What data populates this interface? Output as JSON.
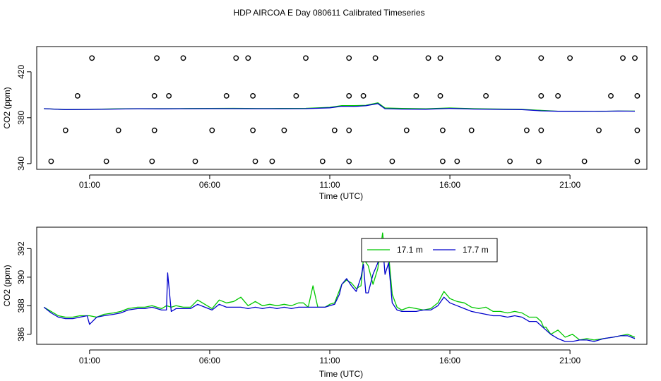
{
  "title": "HDP AIRCOA E  Day 080611  Calibrated Timeseries",
  "colors": {
    "green": "#00c800",
    "blue": "#0000cc",
    "axis": "#000000"
  },
  "chart_data": [
    {
      "type": "line",
      "panel": "top",
      "xlabel": "Time (UTC)",
      "ylabel": "CO2 (ppm)",
      "xlim": [
        -1.2,
        24.2
      ],
      "ylim": [
        335,
        442
      ],
      "x_ticks": [
        1,
        6,
        11,
        16,
        21
      ],
      "x_tick_labels": [
        "01:00",
        "06:00",
        "11:00",
        "16:00",
        "21:00"
      ],
      "y_ticks": [
        340,
        380,
        420
      ],
      "y_tick_labels": [
        "340",
        "380",
        "420"
      ],
      "series": [
        {
          "name": "17.1 m",
          "color": "green",
          "x": [
            -0.9,
            0,
            1,
            2,
            3,
            4,
            5,
            6,
            7,
            8,
            9,
            10,
            11,
            11.5,
            12,
            12.5,
            13,
            13.3,
            14,
            15,
            16,
            17,
            18,
            19,
            19.8,
            20.5,
            21,
            22,
            23,
            23.7
          ],
          "y": [
            387.9,
            387.1,
            387.3,
            387.7,
            387.9,
            387.9,
            388.0,
            388.1,
            388.2,
            388.0,
            388.1,
            388.2,
            389.0,
            390.6,
            390.5,
            390.8,
            393.0,
            388.5,
            388.1,
            387.8,
            388.5,
            387.9,
            387.6,
            387.3,
            386.4,
            385.7,
            385.6,
            385.5,
            385.8,
            385.8
          ]
        },
        {
          "name": "17.7 m",
          "color": "blue",
          "x": [
            -0.9,
            0,
            1,
            2,
            3,
            4,
            5,
            6,
            7,
            8,
            9,
            10,
            11,
            11.5,
            12,
            12.5,
            13,
            13.3,
            14,
            15,
            16,
            17,
            18,
            19,
            19.8,
            20.5,
            21,
            22,
            23,
            23.7
          ],
          "y": [
            387.9,
            387.0,
            387.2,
            387.5,
            387.8,
            387.7,
            387.8,
            387.9,
            387.9,
            387.8,
            387.8,
            387.9,
            388.6,
            390.0,
            389.8,
            390.4,
            392.3,
            387.8,
            387.5,
            387.4,
            388.1,
            387.5,
            387.3,
            387.0,
            386.0,
            385.6,
            385.6,
            385.5,
            385.8,
            385.7
          ]
        }
      ],
      "calibration_points": {
        "type": "scatter",
        "x": [
          1.1,
          3.8,
          4.9,
          7.1,
          7.6,
          10.0,
          11.8,
          12.9,
          15.1,
          15.6,
          18.0,
          19.8,
          21.0,
          23.2,
          23.7,
          0.5,
          3.7,
          4.3,
          6.7,
          7.8,
          9.6,
          11.8,
          12.4,
          14.6,
          15.6,
          17.5,
          19.8,
          20.5,
          22.7,
          23.8,
          0.0,
          2.2,
          3.7,
          6.1,
          7.8,
          9.1,
          11.2,
          11.8,
          14.2,
          15.7,
          16.9,
          19.2,
          19.8,
          22.2,
          23.8,
          -0.6,
          1.7,
          3.6,
          5.4,
          7.9,
          8.6,
          10.7,
          11.8,
          13.6,
          15.7,
          16.3,
          18.5,
          19.7,
          21.6,
          23.8
        ],
        "y": [
          432,
          432,
          432,
          432,
          432,
          432,
          432,
          432,
          432,
          432,
          432,
          432,
          432,
          432,
          432,
          399,
          399,
          399,
          399,
          399,
          399,
          399,
          399,
          399,
          399,
          399,
          399,
          399,
          399,
          399,
          369,
          369,
          369,
          369,
          369,
          369,
          369,
          369,
          369,
          369,
          369,
          369,
          369,
          369,
          369,
          342,
          342,
          342,
          342,
          342,
          342,
          342,
          342,
          342,
          342,
          342,
          342,
          342,
          342,
          342
        ]
      }
    },
    {
      "type": "line",
      "panel": "bottom",
      "xlabel": "Time (UTC)",
      "ylabel": "CO2 (ppm)",
      "xlim": [
        -1.2,
        24.2
      ],
      "ylim": [
        385.3,
        393.5
      ],
      "x_ticks": [
        1,
        6,
        11,
        16,
        21
      ],
      "x_tick_labels": [
        "01:00",
        "06:00",
        "11:00",
        "16:00",
        "21:00"
      ],
      "y_ticks": [
        386,
        388,
        390,
        392
      ],
      "y_tick_labels": [
        "386",
        "388",
        "390",
        "392"
      ],
      "legend": {
        "position": "top-center",
        "entries": [
          "17.1 m",
          "17.7 m"
        ]
      },
      "series": [
        {
          "name": "17.1 m",
          "color": "green",
          "x": [
            -0.9,
            -0.6,
            -0.3,
            0.0,
            0.3,
            0.6,
            1.0,
            1.3,
            1.6,
            2.0,
            2.3,
            2.6,
            3.0,
            3.3,
            3.6,
            4.0,
            4.2,
            4.4,
            4.6,
            4.9,
            5.2,
            5.5,
            5.8,
            6.1,
            6.4,
            6.7,
            7.0,
            7.3,
            7.6,
            7.9,
            8.2,
            8.5,
            8.8,
            9.1,
            9.4,
            9.7,
            9.9,
            10.1,
            10.3,
            10.5,
            10.8,
            11.0,
            11.2,
            11.5,
            11.7,
            11.9,
            12.1,
            12.3,
            12.4,
            12.6,
            12.8,
            13.0,
            13.2,
            13.3,
            13.45,
            13.6,
            13.8,
            14.0,
            14.3,
            14.6,
            14.9,
            15.2,
            15.5,
            15.75,
            16.0,
            16.3,
            16.6,
            16.9,
            17.2,
            17.5,
            17.8,
            18.1,
            18.4,
            18.7,
            19.0,
            19.3,
            19.6,
            19.8,
            19.9,
            20.0,
            20.2,
            20.5,
            20.8,
            21.1,
            21.4,
            21.7,
            22.0,
            22.4,
            22.8,
            23.1,
            23.4,
            23.7
          ],
          "y": [
            387.9,
            387.6,
            387.3,
            387.2,
            387.2,
            387.3,
            387.3,
            387.2,
            387.4,
            387.5,
            387.6,
            387.8,
            387.9,
            387.9,
            388.0,
            387.8,
            388.0,
            387.9,
            388.0,
            387.9,
            387.9,
            388.4,
            388.1,
            387.8,
            388.4,
            388.2,
            388.3,
            388.6,
            388.0,
            388.3,
            388.0,
            388.1,
            388.0,
            388.1,
            388.0,
            388.2,
            388.2,
            387.9,
            389.4,
            387.9,
            387.9,
            388.1,
            388.2,
            389.5,
            389.8,
            389.6,
            389.2,
            389.4,
            391.3,
            390.8,
            389.5,
            390.6,
            393.1,
            391.3,
            391.6,
            388.8,
            387.9,
            387.7,
            387.9,
            387.8,
            387.7,
            387.8,
            388.2,
            389.0,
            388.5,
            388.3,
            388.2,
            387.9,
            387.8,
            387.9,
            387.6,
            387.6,
            387.5,
            387.6,
            387.5,
            387.2,
            387.2,
            386.9,
            386.5,
            386.5,
            386.0,
            386.3,
            385.8,
            386.0,
            385.6,
            385.7,
            385.6,
            385.7,
            385.8,
            385.9,
            386.0,
            385.8
          ]
        },
        {
          "name": "17.7 m",
          "color": "blue",
          "x": [
            -0.9,
            -0.6,
            -0.3,
            0.0,
            0.3,
            0.6,
            0.9,
            1.0,
            1.3,
            1.6,
            2.0,
            2.3,
            2.6,
            3.0,
            3.3,
            3.6,
            4.0,
            4.2,
            4.25,
            4.4,
            4.6,
            4.9,
            5.2,
            5.5,
            5.8,
            6.1,
            6.4,
            6.7,
            7.0,
            7.3,
            7.6,
            7.9,
            8.2,
            8.5,
            8.8,
            9.1,
            9.4,
            9.7,
            10.0,
            10.3,
            10.5,
            10.8,
            11.0,
            11.2,
            11.4,
            11.5,
            11.7,
            11.9,
            12.1,
            12.3,
            12.4,
            12.5,
            12.6,
            12.8,
            13.0,
            13.2,
            13.3,
            13.45,
            13.6,
            13.8,
            14.0,
            14.3,
            14.6,
            14.9,
            15.2,
            15.5,
            15.75,
            16.0,
            16.3,
            16.6,
            16.9,
            17.2,
            17.5,
            17.8,
            18.1,
            18.4,
            18.7,
            19.0,
            19.3,
            19.6,
            19.8,
            20.0,
            20.2,
            20.5,
            20.8,
            21.1,
            21.4,
            21.7,
            22.0,
            22.4,
            22.8,
            23.1,
            23.4,
            23.7
          ],
          "y": [
            387.9,
            387.5,
            387.2,
            387.1,
            387.1,
            387.2,
            387.3,
            386.7,
            387.2,
            387.3,
            387.4,
            387.5,
            387.7,
            387.8,
            387.8,
            387.9,
            387.7,
            387.7,
            390.3,
            387.6,
            387.8,
            387.8,
            387.8,
            388.1,
            387.9,
            387.7,
            388.1,
            387.9,
            387.9,
            387.9,
            387.8,
            387.9,
            387.8,
            387.9,
            387.8,
            387.9,
            387.8,
            387.9,
            387.9,
            387.9,
            387.9,
            387.9,
            388.0,
            388.1,
            388.8,
            389.5,
            389.9,
            389.4,
            389.0,
            390.0,
            390.9,
            388.9,
            388.9,
            390.2,
            391.0,
            392.3,
            390.2,
            391.0,
            388.2,
            387.7,
            387.6,
            387.6,
            387.6,
            387.7,
            387.7,
            388.0,
            388.6,
            388.2,
            388.0,
            387.8,
            387.6,
            387.5,
            387.4,
            387.3,
            387.3,
            387.2,
            387.3,
            387.2,
            386.9,
            386.9,
            386.6,
            386.3,
            386.0,
            385.7,
            385.5,
            385.5,
            385.6,
            385.6,
            385.5,
            385.7,
            385.8,
            385.9,
            385.9,
            385.7
          ]
        }
      ]
    }
  ]
}
